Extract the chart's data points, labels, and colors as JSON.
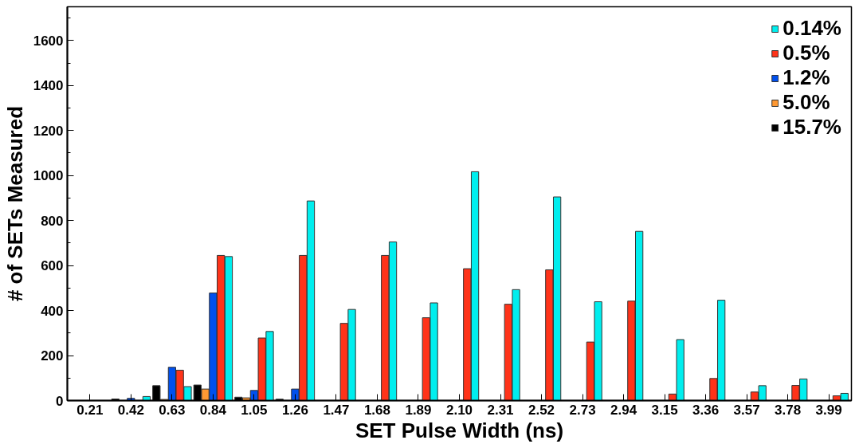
{
  "chart_data": {
    "type": "bar",
    "xlabel": "SET Pulse Width (ns)",
    "ylabel": "# of SETs Measured",
    "categories": [
      "0.21",
      "0.42",
      "0.63",
      "0.84",
      "1.05",
      "1.26",
      "1.47",
      "1.68",
      "1.89",
      "2.10",
      "2.31",
      "2.52",
      "2.73",
      "2.94",
      "3.15",
      "3.36",
      "3.57",
      "3.78",
      "3.99"
    ],
    "series": [
      {
        "name": "0.14%",
        "color": "#00eeee",
        "values": [
          null,
          18,
          62,
          640,
          307,
          887,
          405,
          705,
          434,
          1017,
          493,
          905,
          439,
          752,
          271,
          446,
          66,
          96,
          32
        ]
      },
      {
        "name": "0.5%",
        "color": "#ff3319",
        "values": [
          null,
          null,
          135,
          645,
          278,
          645,
          343,
          645,
          368,
          586,
          428,
          581,
          260,
          442,
          29,
          98,
          38,
          67,
          21
        ]
      },
      {
        "name": "1.2%",
        "color": "#0050ee",
        "values": [
          null,
          10,
          148,
          478,
          45,
          51,
          null,
          null,
          null,
          null,
          null,
          null,
          null,
          null,
          null,
          null,
          null,
          null,
          null
        ]
      },
      {
        "name": "5.0%",
        "color": "#ff9933",
        "values": [
          null,
          null,
          5,
          51,
          12,
          null,
          null,
          null,
          null,
          null,
          null,
          null,
          null,
          null,
          null,
          null,
          null,
          null,
          null
        ]
      },
      {
        "name": "15.7%",
        "color": "#000000",
        "values": [
          null,
          7,
          66,
          69,
          15,
          6,
          null,
          null,
          null,
          null,
          null,
          null,
          null,
          null,
          null,
          null,
          null,
          null,
          null
        ]
      }
    ],
    "ylim": [
      0,
      1750
    ],
    "yticks": [
      0,
      200,
      400,
      600,
      800,
      1000,
      1200,
      1400,
      1600
    ],
    "legend": "top right",
    "grid": false
  }
}
